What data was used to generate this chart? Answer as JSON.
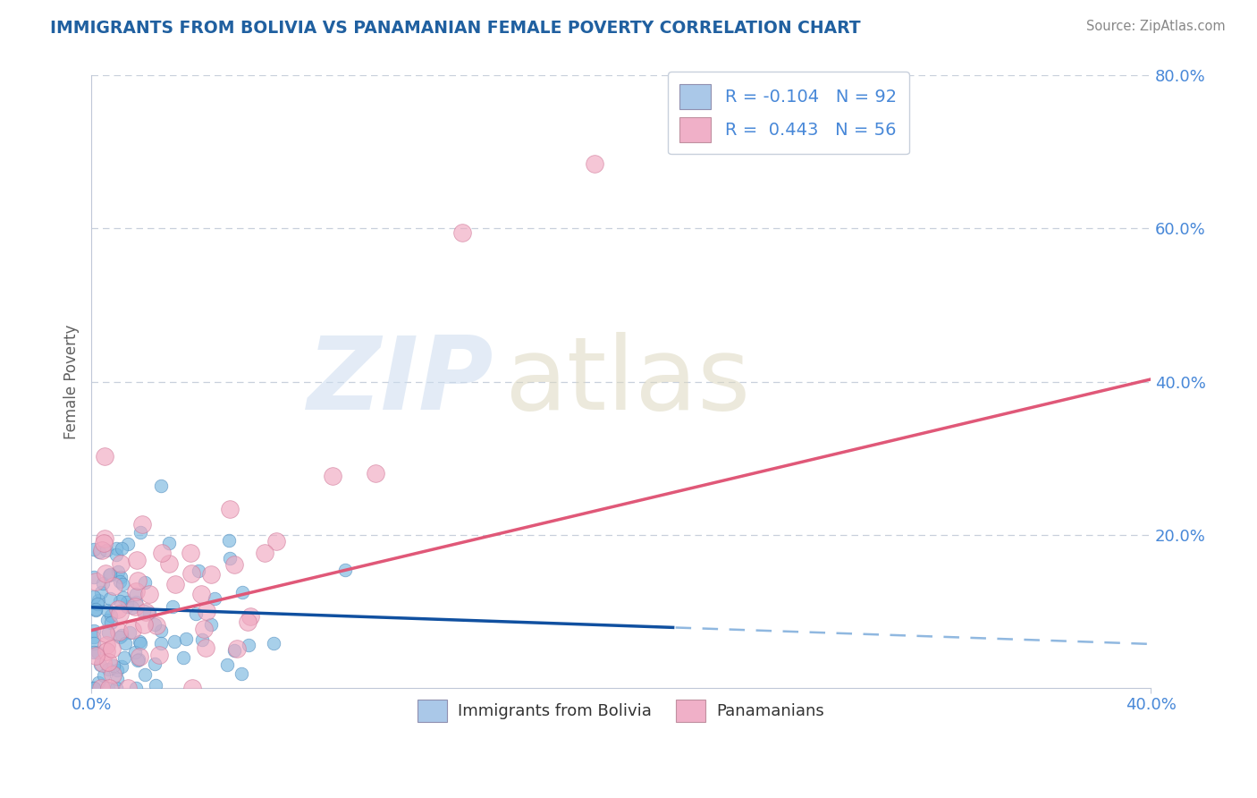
{
  "title": "IMMIGRANTS FROM BOLIVIA VS PANAMANIAN FEMALE POVERTY CORRELATION CHART",
  "source": "Source: ZipAtlas.com",
  "ylabel": "Female Poverty",
  "bolivia_color": "#7ab8e0",
  "bolivia_edge": "#5590c0",
  "panama_color": "#f0a8c0",
  "panama_edge": "#d07898",
  "blue_line_color": "#1050a0",
  "blue_dash_color": "#90b8e0",
  "pink_line_color": "#e05878",
  "bolivia_R": -0.104,
  "panama_R": 0.443,
  "bolivia_N": 92,
  "panama_N": 56,
  "xmax": 0.4,
  "ymax": 0.8,
  "background_color": "#ffffff",
  "grid_color": "#c8d0dc",
  "title_color": "#2060a0",
  "axis_label_color": "#606060",
  "tick_color": "#4888d8",
  "legend_box_color": "#aac8e8",
  "legend_box_pink": "#f0b0c8"
}
